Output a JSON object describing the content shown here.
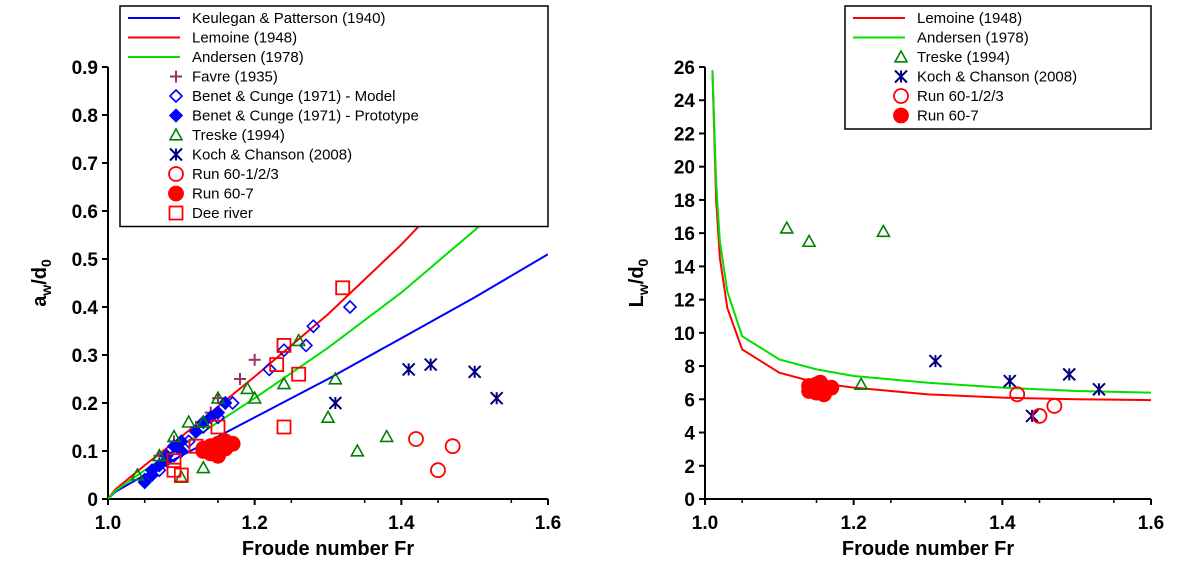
{
  "chart_data": [
    {
      "type": "scatter",
      "xlabel": "Froude number Fr",
      "ylabel_main": "a",
      "ylabel_sub1": "w",
      "ylabel_mid": "/d",
      "ylabel_sub2": "0",
      "xlim": [
        1.0,
        1.6
      ],
      "ylim": [
        0,
        0.9
      ],
      "xticks": [
        "1.0",
        "1.2",
        "1.4",
        "1.6"
      ],
      "yticks": [
        "0",
        "0.1",
        "0.2",
        "0.3",
        "0.4",
        "0.5",
        "0.6",
        "0.7",
        "0.8",
        "0.9"
      ],
      "legend_position": "top",
      "lines": [
        {
          "name": "Keulegan & Patterson (1940)",
          "color": "#0000ff",
          "x": [
            1.0,
            1.01,
            1.05,
            1.1,
            1.2,
            1.3,
            1.4,
            1.5,
            1.6
          ],
          "y": [
            0.0,
            0.015,
            0.05,
            0.09,
            0.17,
            0.25,
            0.335,
            0.42,
            0.51
          ]
        },
        {
          "name": "Lemoine (1948)",
          "color": "#ff0000",
          "x": [
            1.0,
            1.01,
            1.05,
            1.1,
            1.2,
            1.3,
            1.4,
            1.5,
            1.6
          ],
          "y": [
            0.0,
            0.02,
            0.07,
            0.13,
            0.255,
            0.385,
            0.53,
            0.69,
            0.86
          ]
        },
        {
          "name": "Andersen (1978)",
          "color": "#00e000",
          "x": [
            1.0,
            1.01,
            1.05,
            1.1,
            1.2,
            1.3,
            1.4,
            1.5,
            1.6
          ],
          "y": [
            0.0,
            0.017,
            0.06,
            0.11,
            0.21,
            0.315,
            0.43,
            0.56,
            0.7
          ]
        }
      ],
      "series": [
        {
          "name": "Favre (1935)",
          "marker": "plus",
          "color": "#993366",
          "points": [
            [
              1.07,
              0.09
            ],
            [
              1.09,
              0.12
            ],
            [
              1.12,
              0.15
            ],
            [
              1.14,
              0.18
            ],
            [
              1.15,
              0.21
            ],
            [
              1.18,
              0.25
            ],
            [
              1.2,
              0.29
            ]
          ]
        },
        {
          "name": "Benet & Cunge (1971) - Model",
          "marker": "diamond-open",
          "color": "#0000ff",
          "points": [
            [
              1.05,
              0.04
            ],
            [
              1.07,
              0.06
            ],
            [
              1.09,
              0.09
            ],
            [
              1.11,
              0.12
            ],
            [
              1.13,
              0.15
            ],
            [
              1.15,
              0.17
            ],
            [
              1.17,
              0.2
            ],
            [
              1.22,
              0.27
            ],
            [
              1.24,
              0.31
            ],
            [
              1.27,
              0.32
            ],
            [
              1.28,
              0.36
            ],
            [
              1.33,
              0.4
            ]
          ]
        },
        {
          "name": "Benet & Cunge (1971) - Prototype",
          "marker": "diamond-filled",
          "color": "#0000ff",
          "points": [
            [
              1.05,
              0.035
            ],
            [
              1.06,
              0.05
            ],
            [
              1.07,
              0.07
            ],
            [
              1.08,
              0.09
            ],
            [
              1.09,
              0.11
            ],
            [
              1.1,
              0.12
            ],
            [
              1.12,
              0.14
            ],
            [
              1.13,
              0.16
            ],
            [
              1.14,
              0.17
            ],
            [
              1.15,
              0.18
            ],
            [
              1.16,
              0.2
            ],
            [
              1.06,
              0.06
            ],
            [
              1.08,
              0.08
            ],
            [
              1.1,
              0.1
            ]
          ]
        },
        {
          "name": "Treske (1994)",
          "marker": "triangle-open",
          "color": "#008000",
          "points": [
            [
              1.04,
              0.05
            ],
            [
              1.07,
              0.09
            ],
            [
              1.09,
              0.13
            ],
            [
              1.11,
              0.16
            ],
            [
              1.13,
              0.16
            ],
            [
              1.15,
              0.21
            ],
            [
              1.19,
              0.23
            ],
            [
              1.2,
              0.21
            ],
            [
              1.24,
              0.24
            ],
            [
              1.26,
              0.33
            ],
            [
              1.3,
              0.17
            ],
            [
              1.31,
              0.25
            ],
            [
              1.34,
              0.1
            ],
            [
              1.38,
              0.13
            ],
            [
              1.13,
              0.065
            ],
            [
              1.1,
              0.045
            ]
          ]
        },
        {
          "name": "Koch & Chanson (2008)",
          "marker": "asterisk",
          "color": "#000080",
          "points": [
            [
              1.31,
              0.2
            ],
            [
              1.41,
              0.27
            ],
            [
              1.44,
              0.28
            ],
            [
              1.5,
              0.265
            ],
            [
              1.53,
              0.21
            ]
          ]
        },
        {
          "name": "Run 60-1/2/3",
          "marker": "circle-open",
          "color": "#ff0000",
          "points": [
            [
              1.42,
              0.125
            ],
            [
              1.45,
              0.06
            ],
            [
              1.47,
              0.11
            ]
          ]
        },
        {
          "name": "Run 60-7",
          "marker": "circle-filled",
          "color": "#ff0000",
          "points": [
            [
              1.13,
              0.1
            ],
            [
              1.14,
              0.11
            ],
            [
              1.15,
              0.1
            ],
            [
              1.16,
              0.12
            ],
            [
              1.14,
              0.095
            ],
            [
              1.15,
              0.115
            ],
            [
              1.16,
              0.105
            ],
            [
              1.17,
              0.115
            ],
            [
              1.13,
              0.105
            ],
            [
              1.15,
              0.09
            ]
          ]
        },
        {
          "name": "Dee river",
          "marker": "square-open",
          "color": "#ff0000",
          "points": [
            [
              1.09,
              0.06
            ],
            [
              1.1,
              0.05
            ],
            [
              1.12,
              0.11
            ],
            [
              1.15,
              0.15
            ],
            [
              1.23,
              0.28
            ],
            [
              1.24,
              0.32
            ],
            [
              1.26,
              0.26
            ],
            [
              1.24,
              0.15
            ],
            [
              1.32,
              0.44
            ],
            [
              1.09,
              0.08
            ]
          ]
        }
      ]
    },
    {
      "type": "scatter",
      "xlabel": "Froude number Fr",
      "ylabel_main": "L",
      "ylabel_sub1": "w",
      "ylabel_mid": "/d",
      "ylabel_sub2": "0",
      "xlim": [
        1.0,
        1.6
      ],
      "ylim": [
        0,
        26
      ],
      "xticks": [
        "1.0",
        "1.2",
        "1.4",
        "1.6"
      ],
      "yticks": [
        "0",
        "2",
        "4",
        "6",
        "8",
        "10",
        "12",
        "14",
        "16",
        "18",
        "20",
        "22",
        "24",
        "26"
      ],
      "legend_position": "top-right",
      "lines": [
        {
          "name": "Lemoine (1948)",
          "color": "#ff0000",
          "x": [
            1.01,
            1.015,
            1.02,
            1.03,
            1.05,
            1.1,
            1.15,
            1.2,
            1.3,
            1.4,
            1.5,
            1.6
          ],
          "y": [
            25.8,
            18.0,
            14.5,
            11.5,
            9.0,
            7.6,
            7.0,
            6.7,
            6.3,
            6.1,
            6.0,
            5.95
          ]
        },
        {
          "name": "Andersen (1978)",
          "color": "#00e000",
          "x": [
            1.01,
            1.015,
            1.02,
            1.03,
            1.05,
            1.1,
            1.15,
            1.2,
            1.3,
            1.4,
            1.5,
            1.6
          ],
          "y": [
            25.8,
            19.0,
            15.5,
            12.5,
            9.8,
            8.4,
            7.8,
            7.4,
            7.0,
            6.7,
            6.5,
            6.4
          ]
        }
      ],
      "series": [
        {
          "name": "Treske (1994)",
          "marker": "triangle-open",
          "color": "#008000",
          "points": [
            [
              1.11,
              16.3
            ],
            [
              1.14,
              15.5
            ],
            [
              1.24,
              16.1
            ],
            [
              1.21,
              6.9
            ]
          ]
        },
        {
          "name": "Koch & Chanson (2008)",
          "marker": "asterisk",
          "color": "#000080",
          "points": [
            [
              1.31,
              8.3
            ],
            [
              1.41,
              7.1
            ],
            [
              1.44,
              5.0
            ],
            [
              1.49,
              7.5
            ],
            [
              1.53,
              6.6
            ]
          ]
        },
        {
          "name": "Run 60-1/2/3",
          "marker": "circle-open",
          "color": "#ff0000",
          "points": [
            [
              1.42,
              6.3
            ],
            [
              1.45,
              5.0
            ],
            [
              1.47,
              5.6
            ]
          ]
        },
        {
          "name": "Run 60-7",
          "marker": "circle-filled",
          "color": "#ff0000",
          "points": [
            [
              1.14,
              6.5
            ],
            [
              1.15,
              6.9
            ],
            [
              1.16,
              6.6
            ],
            [
              1.15,
              6.4
            ],
            [
              1.17,
              6.7
            ],
            [
              1.14,
              6.8
            ],
            [
              1.16,
              6.3
            ],
            [
              1.155,
              7.0
            ]
          ]
        }
      ]
    }
  ]
}
